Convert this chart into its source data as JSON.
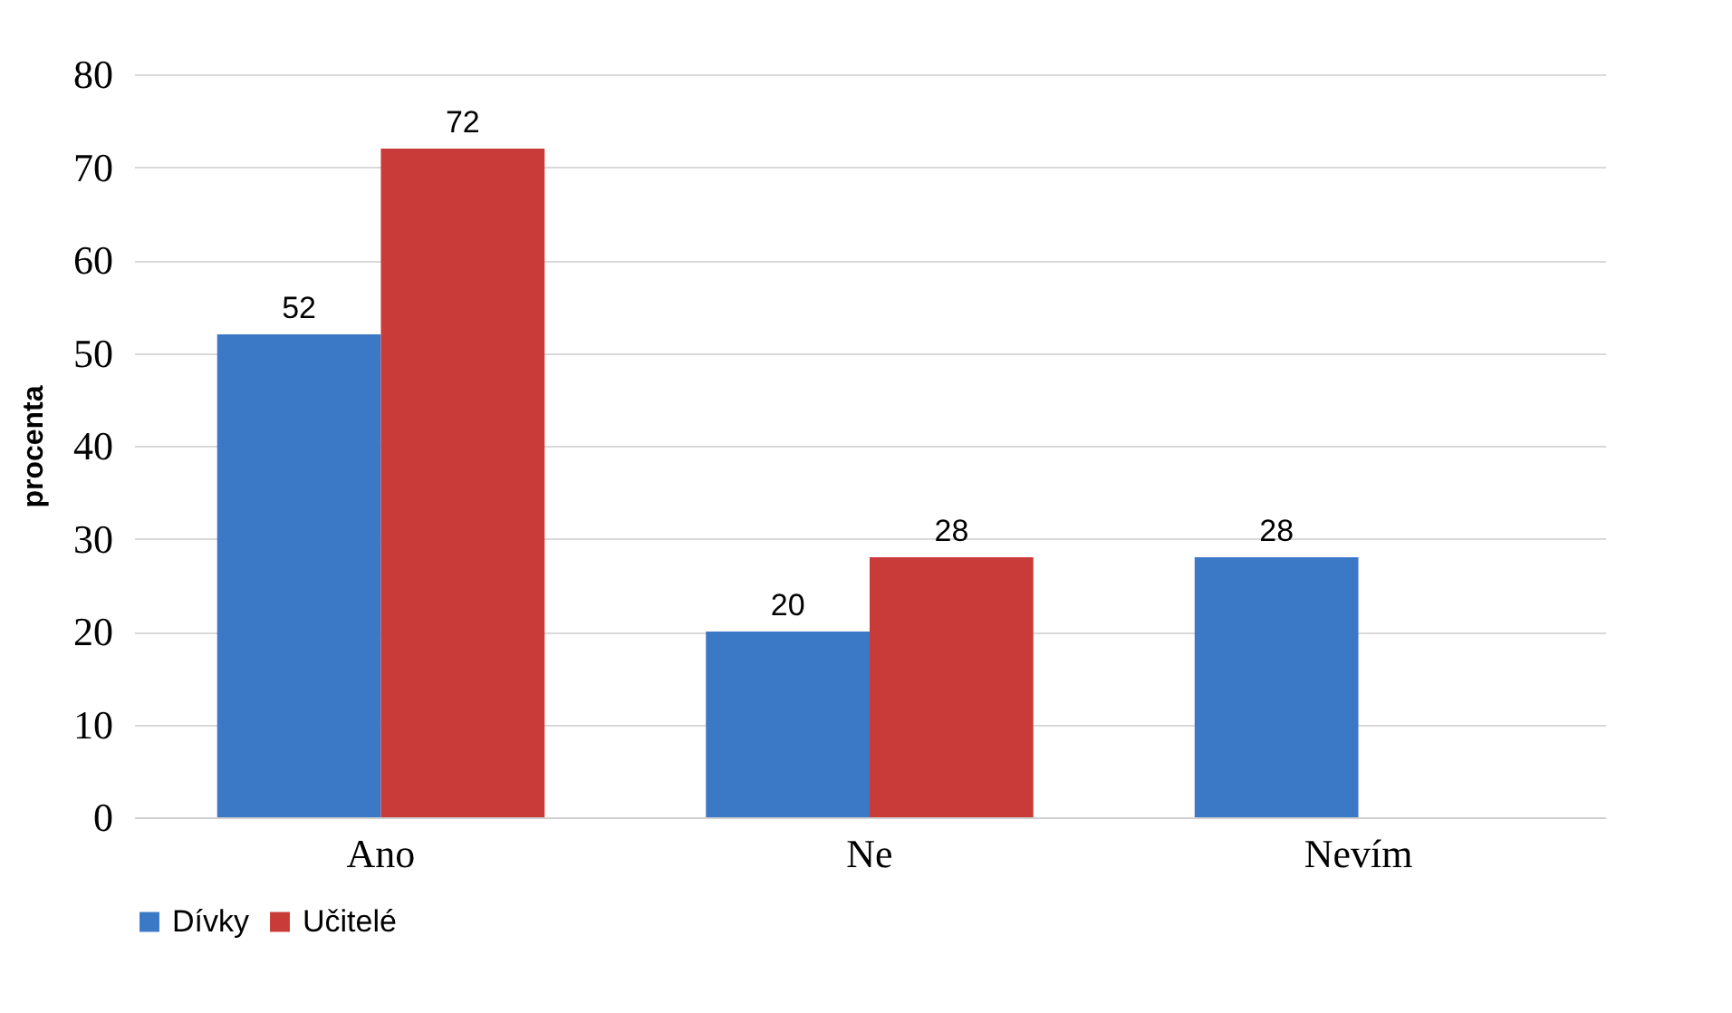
{
  "chart_data": {
    "type": "bar",
    "ylabel": "procenta",
    "categories": [
      "Ano",
      "Ne",
      "Nevím"
    ],
    "series": [
      {
        "name": "Dívky",
        "color": "#3b78c6",
        "values": [
          52,
          20,
          28
        ]
      },
      {
        "name": "Učitelé",
        "color": "#c93b38",
        "values": [
          72,
          28,
          null
        ]
      }
    ],
    "ylim": [
      0,
      80
    ],
    "yticks": [
      0,
      10,
      20,
      30,
      40,
      50,
      60,
      70,
      80
    ],
    "grid": "y",
    "legend": "bottom",
    "data_labels": true
  }
}
